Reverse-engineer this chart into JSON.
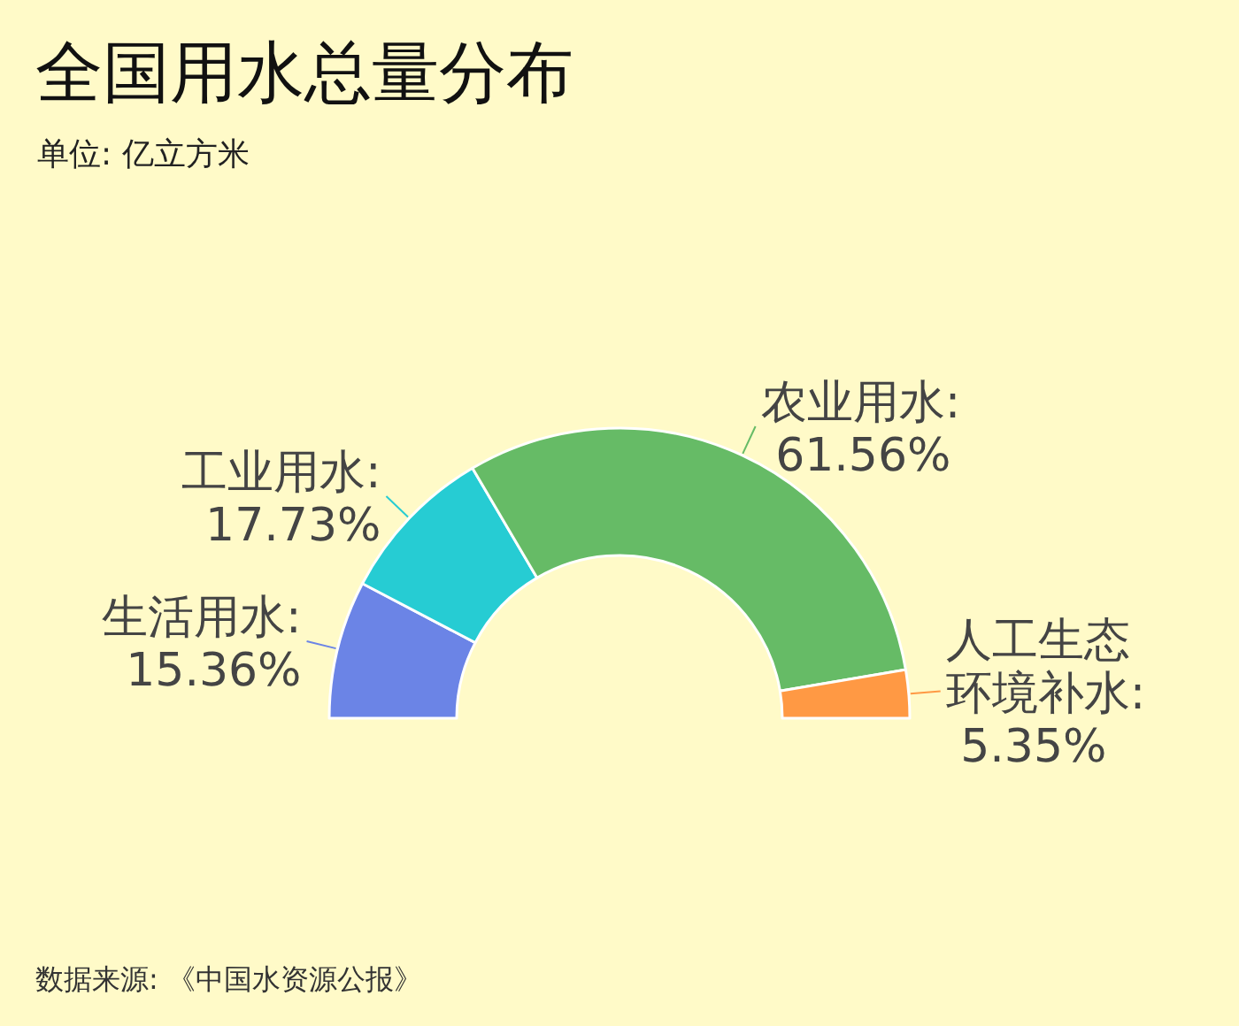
{
  "chart_data": {
    "type": "donut",
    "title": "全国用水总量分布",
    "subtitle": "单位: 亿立方米",
    "categories": [
      "生活用水",
      "工业用水",
      "农业用水",
      "人工生态环境补水"
    ],
    "values": [
      15.36,
      17.73,
      61.56,
      5.35
    ],
    "colors": [
      "#6b84e6",
      "#26ccd3",
      "#66bb66",
      "#ff9944"
    ],
    "value_labels": [
      ": 15.36%",
      ": 17.73%",
      ": 61.56%",
      ": 5.35%"
    ],
    "annotations": [
      "数据来源: 《中国水资源公报》"
    ]
  }
}
